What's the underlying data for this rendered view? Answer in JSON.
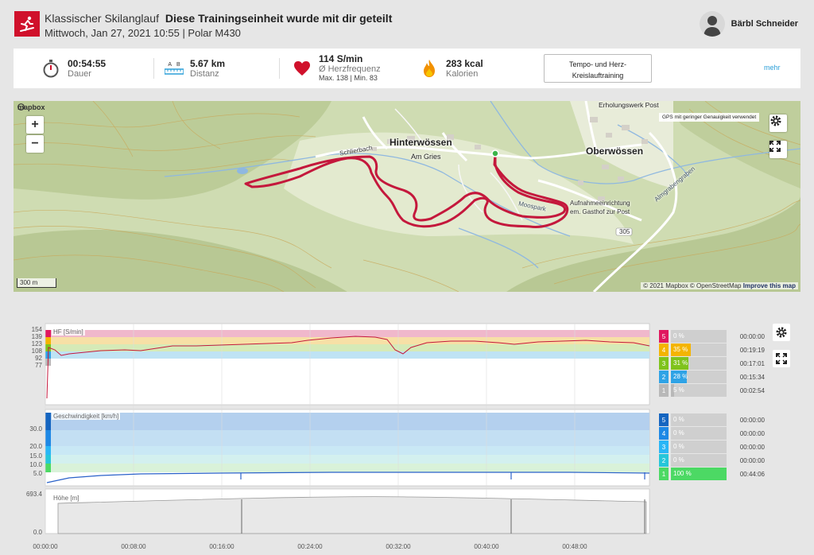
{
  "header": {
    "sport": "Klassischer Skilanglauf",
    "shared_text": "Diese Trainingseinheit wurde mit dir geteilt",
    "datetime": "Mittwoch, Jan 27, 2021 10:55 | Polar M430",
    "user_name": "Bärbl Schneider",
    "accent": "#d0112b"
  },
  "summary": {
    "duration_value": "00:54:55",
    "duration_label": "Dauer",
    "dist_a": "A",
    "dist_b": "B",
    "distance_value": "5.67 km",
    "distance_label": "Distanz",
    "hr_value": "114 S/min",
    "hr_label": "Ø Herzfrequenz",
    "hr_sub": "Max. 138 | Min. 83",
    "cal_value": "283 kcal",
    "cal_label": "Kalorien",
    "program_line1": "Tempo- und Herz-",
    "program_line2": "Kreislauftraining",
    "more": "mehr"
  },
  "map": {
    "logo": "mapbox",
    "zoom_in": "+",
    "zoom_out": "−",
    "gps_note": "GPS mit geringer Genauigkeit verwendet",
    "scale": "300 m",
    "attribution": "© 2021 Mapbox © OpenStreetMap",
    "improve": "Improve this map",
    "places": {
      "hinterwoessen": "Hinterwössen",
      "oberwoessen": "Oberwössen",
      "am_gries": "Am Gries",
      "erholungswerk": "Erholungswerk Post",
      "schlierbach": "Schlierbach",
      "aufnahme1": "Aufnahmeeinrichtung",
      "aufnahme2": "em. Gasthof zur Post",
      "road": "305",
      "moospark": "Moospark",
      "almgraben": "Almgrabengraben"
    }
  },
  "hf_chart": {
    "label": "HF [S/min]",
    "ticks": [
      "154",
      "139",
      "123",
      "108",
      "92",
      "77"
    ],
    "zones": [
      {
        "num": "5",
        "pct": "0 %",
        "time": "00:00:00",
        "color": "#e0185f",
        "fill": 0
      },
      {
        "num": "4",
        "pct": "35 %",
        "time": "00:19:19",
        "color": "#f4b400",
        "fill": 0.35
      },
      {
        "num": "3",
        "pct": "31 %",
        "time": "00:17:01",
        "color": "#7fc31c",
        "fill": 0.31
      },
      {
        "num": "2",
        "pct": "28 %",
        "time": "00:15:34",
        "color": "#2fa3e6",
        "fill": 0.28
      },
      {
        "num": "1",
        "pct": "5 %",
        "time": "00:02:54",
        "color": "#b8b8b8",
        "fill": 0.05
      }
    ]
  },
  "speed_chart": {
    "label": "Geschwindigkeit [km/h]",
    "ticks": [
      "30.0",
      "20.0",
      "15.0",
      "10.0",
      "5.0"
    ],
    "zones": [
      {
        "num": "5",
        "pct": "0 %",
        "time": "00:00:00",
        "color": "#1565c0",
        "fill": 0
      },
      {
        "num": "4",
        "pct": "0 %",
        "time": "00:00:00",
        "color": "#1e88e5",
        "fill": 0
      },
      {
        "num": "3",
        "pct": "0 %",
        "time": "00:00:00",
        "color": "#29b6f6",
        "fill": 0
      },
      {
        "num": "2",
        "pct": "0 %",
        "time": "00:00:00",
        "color": "#26c6da",
        "fill": 0
      },
      {
        "num": "1",
        "pct": "100 %",
        "time": "00:44:06",
        "color": "#4cd964",
        "fill": 1.0
      }
    ]
  },
  "alt_chart": {
    "label": "Höhe [m]",
    "ticks": [
      "693.4",
      "0.0"
    ]
  },
  "x_axis": [
    "00:00:00",
    "00:08:00",
    "00:16:00",
    "00:24:00",
    "00:32:00",
    "00:40:00",
    "00:48:00"
  ]
}
